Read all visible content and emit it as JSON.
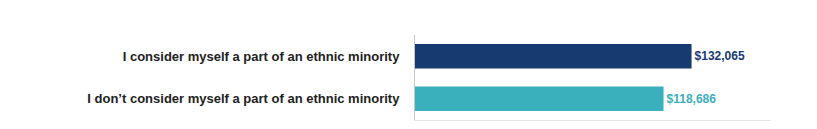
{
  "chart_data": {
    "type": "bar",
    "orientation": "horizontal",
    "categories": [
      "I consider myself a part of an ethnic minority",
      "I don’t consider myself a part of an ethnic minority"
    ],
    "values": [
      132065,
      118686
    ],
    "value_labels": [
      "$132,065",
      "$118,686"
    ],
    "colors": [
      "#173a70",
      "#3bb0bd"
    ],
    "xlim": [
      0,
      170000
    ],
    "tick_labels": "y",
    "data_labels": true,
    "grid": false
  }
}
